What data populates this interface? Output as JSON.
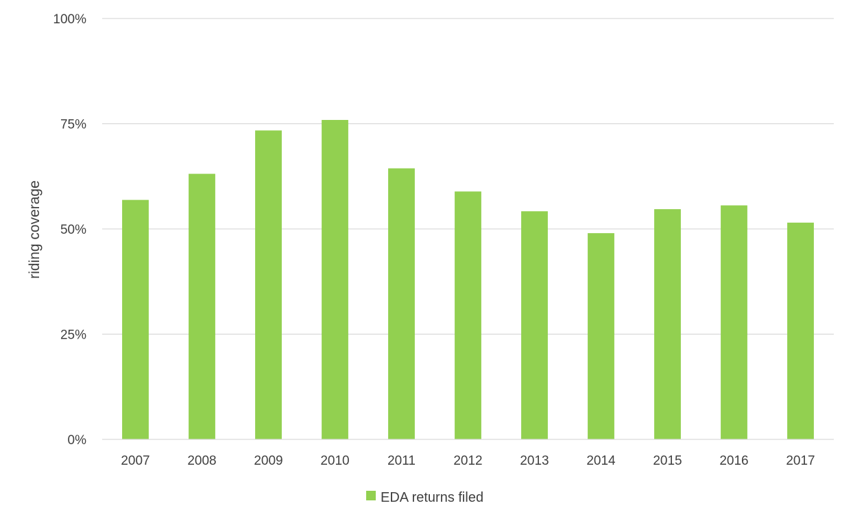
{
  "chart_data": {
    "type": "bar",
    "title": "",
    "xlabel": "",
    "ylabel": "riding coverage",
    "categories": [
      "2007",
      "2008",
      "2009",
      "2010",
      "2011",
      "2012",
      "2013",
      "2014",
      "2015",
      "2016",
      "2017"
    ],
    "series": [
      {
        "name": "EDA returns filed",
        "values": [
          0.569,
          0.631,
          0.734,
          0.759,
          0.644,
          0.589,
          0.542,
          0.49,
          0.547,
          0.556,
          0.515
        ],
        "color": "#92d050"
      }
    ],
    "ylim": [
      0,
      1
    ],
    "yticks": [
      0,
      0.25,
      0.5,
      0.75,
      1
    ],
    "ytick_labels": [
      "0%",
      "25%",
      "50%",
      "75%",
      "100%"
    ],
    "grid": true,
    "legend_position": "bottom",
    "colors": {
      "gridline": "#d9d9d9",
      "axis_line": "#d9d9d9",
      "text": "#404040"
    }
  }
}
